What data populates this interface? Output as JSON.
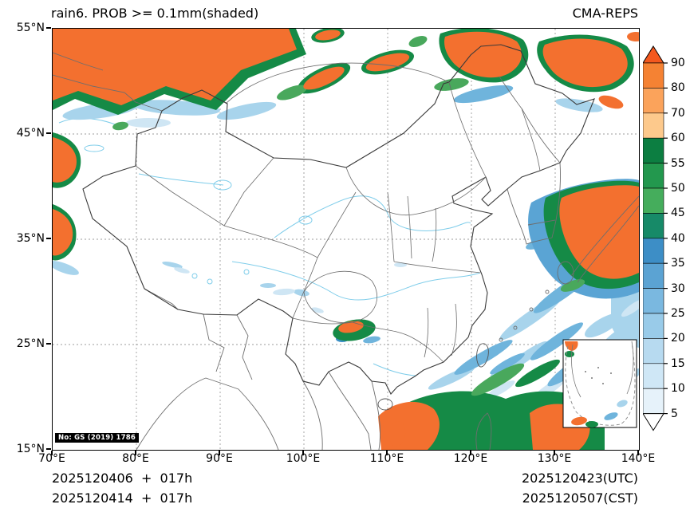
{
  "header": {
    "title": "rain6. PROB >= 0.1mm(shaded)",
    "model": "CMA-REPS"
  },
  "axes": {
    "y_ticks": [
      "55°N",
      "45°N",
      "35°N",
      "25°N",
      "15°N"
    ],
    "x_ticks": [
      "70°E",
      "80°E",
      "90°E",
      "100°E",
      "110°E",
      "120°E",
      "130°E",
      "140°E"
    ]
  },
  "colorbar": {
    "tick_labels": [
      "90",
      "80",
      "70",
      "60",
      "55",
      "50",
      "45",
      "40",
      "35",
      "30",
      "25",
      "20",
      "15",
      "10",
      "5"
    ],
    "over_color": "#f4581e",
    "under_color": "#ffffff",
    "segment_colors_top_to_bottom": [
      "#f58233",
      "#fba35b",
      "#fdc98c",
      "#0c7e41",
      "#23984e",
      "#45ad5c",
      "#178a68",
      "#3d8ec6",
      "#5ba3d3",
      "#7ab8e0",
      "#99cbe9",
      "#b7daf0",
      "#cfe7f6",
      "#e6f2fa"
    ]
  },
  "map": {
    "license_label": "No: GS (2019) 1786"
  },
  "footer": {
    "init_line1": "2025120406  +  017h",
    "init_line2": "2025120414  +  017h",
    "valid_utc": "2025120423(UTC)",
    "valid_cst": "2025120507(CST)"
  }
}
